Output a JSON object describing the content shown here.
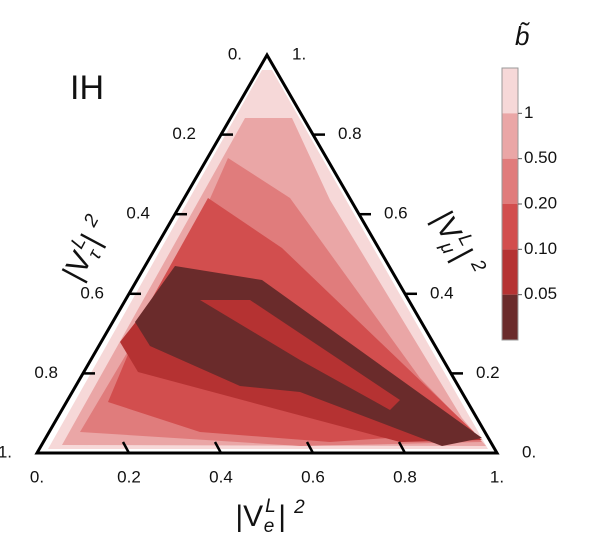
{
  "chart_data": {
    "type": "ternary",
    "annotation": "IH",
    "axes": {
      "bottom": {
        "label": {
          "open": "|V",
          "sub": "e",
          "sup": "L",
          "close": "|",
          "power": "2"
        },
        "ticks": [
          {
            "value": 0,
            "label": "0."
          },
          0.2,
          0.4,
          0.6,
          0.8,
          {
            "value": 1,
            "label": "1."
          }
        ]
      },
      "left": {
        "label": {
          "open": "|V",
          "sub": "τ",
          "sup": "L",
          "close": "|",
          "power": "2"
        },
        "ticks": [
          {
            "value": 0,
            "label": "0."
          },
          0.2,
          0.4,
          0.6,
          0.8,
          {
            "value": 1,
            "label": "1."
          }
        ]
      },
      "right": {
        "label": {
          "open": "|V",
          "sub": "μ",
          "sup": "L",
          "close": "|",
          "power": "2"
        },
        "ticks": [
          {
            "value": 0,
            "label": "0."
          },
          0.2,
          0.4,
          0.6,
          0.8,
          {
            "value": 1,
            "label": "1."
          }
        ]
      }
    },
    "colorbar": {
      "title": "b̃",
      "ticks": [
        1,
        {
          "value": 0.5,
          "label": "0.50"
        },
        {
          "value": 0.2,
          "label": "0.20"
        },
        {
          "value": 0.1,
          "label": "0.10"
        },
        0.05
      ],
      "colors": [
        "#f6d8d8",
        "#eaa6a6",
        "#e07c7c",
        "#d24e4e",
        "#b53232",
        "#6a2b2b"
      ]
    }
  }
}
